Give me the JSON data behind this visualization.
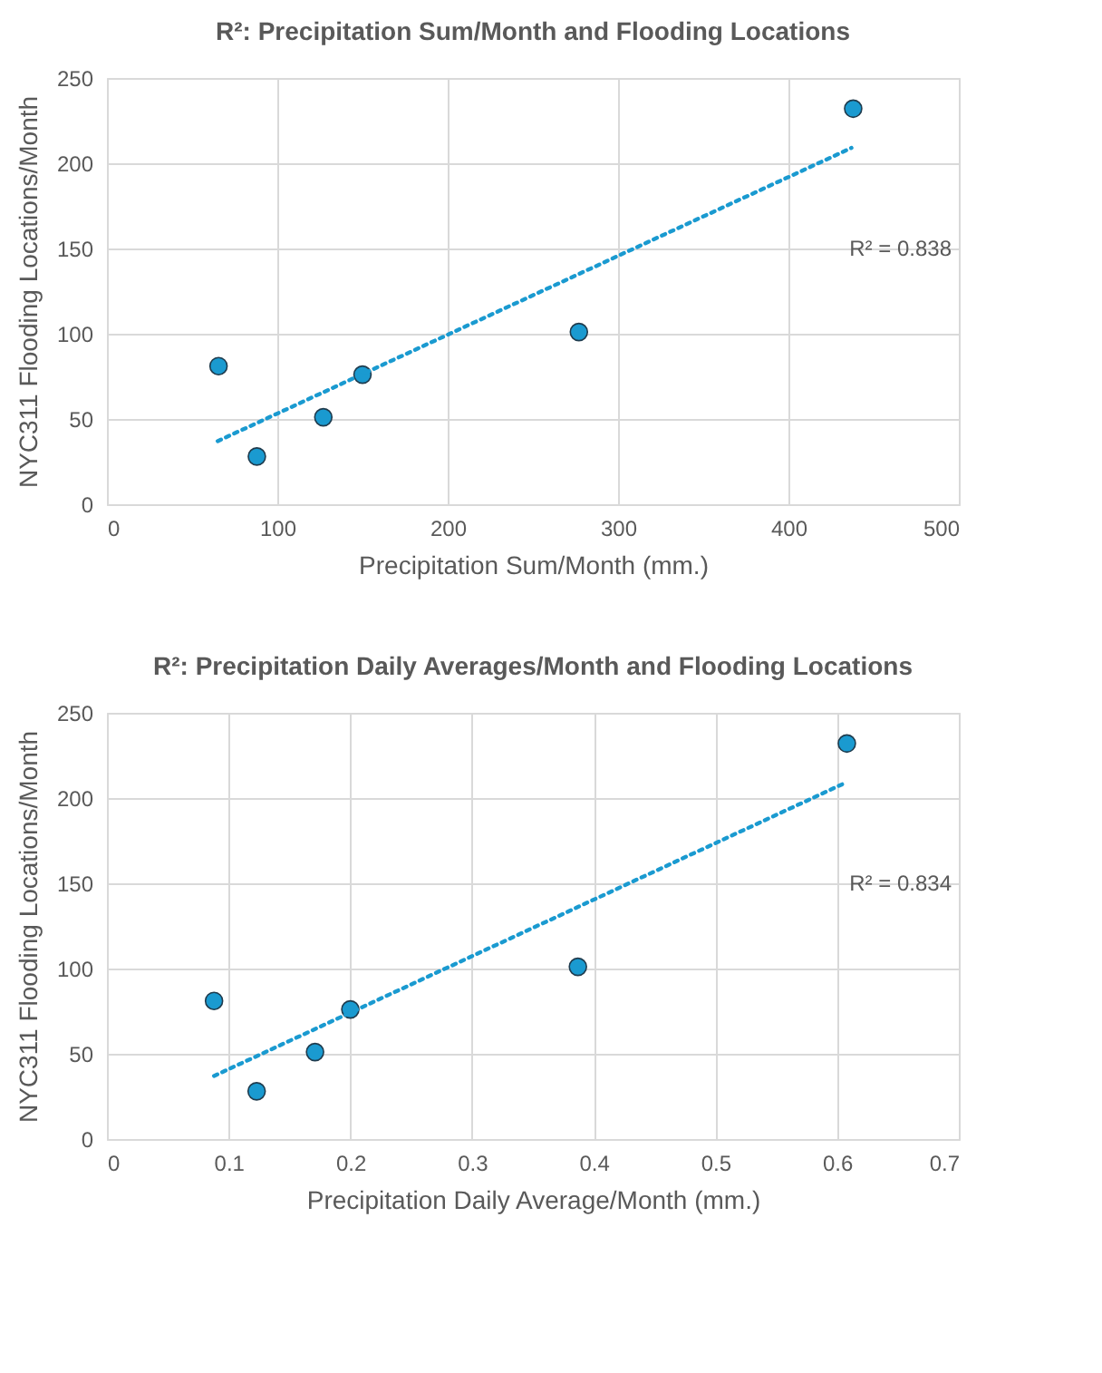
{
  "chart_data": [
    {
      "type": "scatter",
      "title": "R²: Precipitation Sum/Month and Flooding Locations",
      "xlabel": "Precipitation Sum/Month (mm.)",
      "ylabel": "NYC311 Flooding Locations/Month",
      "xlim": [
        0,
        500
      ],
      "xticks": [
        0,
        100,
        200,
        300,
        400,
        500
      ],
      "ylim": [
        0,
        250
      ],
      "yticks": [
        0,
        50,
        100,
        150,
        200,
        250
      ],
      "grid": true,
      "series": [
        {
          "color": "#1a9ad0",
          "marker": "circle",
          "x": [
            65.5,
            88,
            127,
            150,
            277,
            438
          ],
          "values": [
            81,
            28,
            51,
            76,
            101,
            232
          ]
        },
        {
          "type": "line",
          "color": "#1a9ad0",
          "line_style": "dotted",
          "marker": "none",
          "x": [
            65,
            437
          ],
          "values": [
            37,
            209
          ]
        }
      ],
      "annotations": [
        "R² = 0.838"
      ]
    },
    {
      "type": "scatter",
      "title": "R²: Precipitation Daily Averages/Month and Flooding Locations",
      "xlabel": "Precipitation Daily Average/Month (mm.)",
      "ylabel": "NYC311 Flooding Locations/Month",
      "xlim": [
        0,
        0.7
      ],
      "xticks": [
        0,
        0.1,
        0.2,
        0.3,
        0.4,
        0.5,
        0.6,
        0.7
      ],
      "ylim": [
        0,
        250
      ],
      "yticks": [
        0,
        50,
        100,
        150,
        200,
        250
      ],
      "grid": true,
      "series": [
        {
          "color": "#1a9ad0",
          "marker": "circle",
          "x": [
            0.088,
            0.123,
            0.171,
            0.2,
            0.387,
            0.608
          ],
          "values": [
            81,
            28,
            51,
            76,
            101,
            232
          ]
        },
        {
          "type": "line",
          "color": "#1a9ad0",
          "line_style": "dotted",
          "marker": "none",
          "x": [
            0.088,
            0.607
          ],
          "values": [
            37,
            209
          ]
        }
      ],
      "annotations": [
        "R² = 0.834"
      ]
    }
  ]
}
